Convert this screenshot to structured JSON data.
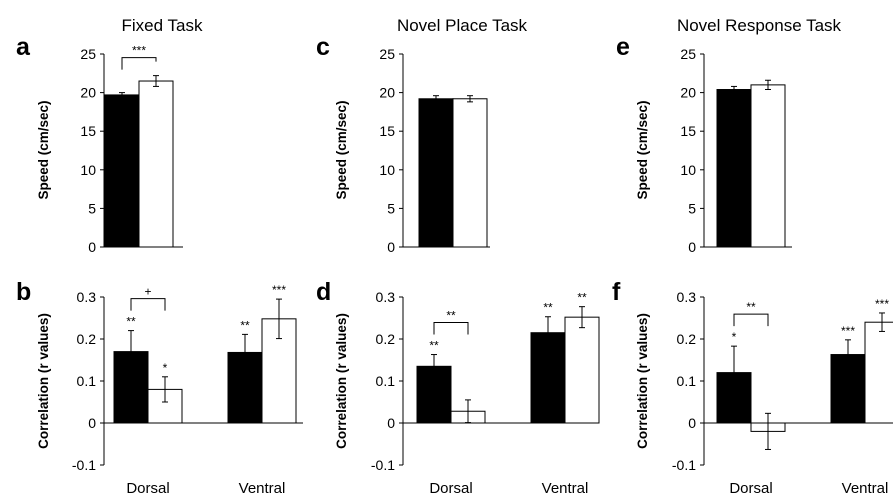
{
  "chart_data": [
    {
      "id": "a",
      "letter": "a",
      "type": "bar",
      "title": "Fixed Task",
      "ylabel": "Speed (cm/sec)",
      "ylim": [
        0,
        25
      ],
      "yticks": [
        0,
        5,
        10,
        15,
        20,
        25
      ],
      "categories": [
        ""
      ],
      "series": [
        {
          "fill": "#000000",
          "values": [
            19.7
          ],
          "errors": [
            0.3
          ],
          "labels": [
            ""
          ]
        },
        {
          "fill": "#ffffff",
          "values": [
            21.5
          ],
          "errors": [
            0.7
          ],
          "labels": [
            ""
          ]
        }
      ],
      "brackets": [
        {
          "group": 0,
          "label": "***"
        }
      ]
    },
    {
      "id": "b",
      "letter": "b",
      "type": "bar",
      "title": "",
      "ylabel": "Correlation (r values)",
      "ylim": [
        -0.1,
        0.3
      ],
      "yticks": [
        -0.1,
        0,
        0.1,
        0.2,
        0.3
      ],
      "categories": [
        "Dorsal",
        "Ventral"
      ],
      "series": [
        {
          "fill": "#000000",
          "values": [
            0.17,
            0.168
          ],
          "errors": [
            0.05,
            0.043
          ],
          "labels": [
            "**",
            "**"
          ]
        },
        {
          "fill": "#ffffff",
          "values": [
            0.08,
            0.248
          ],
          "errors": [
            0.03,
            0.047
          ],
          "labels": [
            "*",
            "***"
          ]
        }
      ],
      "brackets": [
        {
          "group": 0,
          "label": "+"
        }
      ]
    },
    {
      "id": "c",
      "letter": "c",
      "type": "bar",
      "title": "Novel Place Task",
      "ylabel": "Speed (cm/sec)",
      "ylim": [
        0,
        25
      ],
      "yticks": [
        0,
        5,
        10,
        15,
        20,
        25
      ],
      "categories": [
        ""
      ],
      "series": [
        {
          "fill": "#000000",
          "values": [
            19.2
          ],
          "errors": [
            0.4
          ],
          "labels": [
            ""
          ]
        },
        {
          "fill": "#ffffff",
          "values": [
            19.2
          ],
          "errors": [
            0.4
          ],
          "labels": [
            ""
          ]
        }
      ],
      "brackets": []
    },
    {
      "id": "d",
      "letter": "d",
      "type": "bar",
      "title": "",
      "ylabel": "Correlation (r values)",
      "ylim": [
        -0.1,
        0.3
      ],
      "yticks": [
        -0.1,
        0,
        0.1,
        0.2,
        0.3
      ],
      "categories": [
        "Dorsal",
        "Ventral"
      ],
      "series": [
        {
          "fill": "#000000",
          "values": [
            0.135,
            0.215
          ],
          "errors": [
            0.028,
            0.038
          ],
          "labels": [
            "**",
            "**"
          ]
        },
        {
          "fill": "#ffffff",
          "values": [
            0.028,
            0.252
          ],
          "errors": [
            0.027,
            0.025
          ],
          "labels": [
            "",
            "**"
          ]
        }
      ],
      "brackets": [
        {
          "group": 0,
          "label": "**"
        }
      ]
    },
    {
      "id": "e",
      "letter": "e",
      "type": "bar",
      "title": "Novel Response  Task",
      "ylabel": "Speed (cm/sec)",
      "ylim": [
        0,
        25
      ],
      "yticks": [
        0,
        5,
        10,
        15,
        20,
        25
      ],
      "categories": [
        ""
      ],
      "series": [
        {
          "fill": "#000000",
          "values": [
            20.4
          ],
          "errors": [
            0.4
          ],
          "labels": [
            ""
          ]
        },
        {
          "fill": "#ffffff",
          "values": [
            21.0
          ],
          "errors": [
            0.6
          ],
          "labels": [
            ""
          ]
        }
      ],
      "brackets": []
    },
    {
      "id": "f",
      "letter": "f",
      "type": "bar",
      "title": "",
      "ylabel": "Correlation (r values)",
      "ylim": [
        -0.1,
        0.3
      ],
      "yticks": [
        -0.1,
        0,
        0.1,
        0.2,
        0.3
      ],
      "categories": [
        "Dorsal",
        "Ventral"
      ],
      "series": [
        {
          "fill": "#000000",
          "values": [
            0.12,
            0.163
          ],
          "errors": [
            0.063,
            0.035
          ],
          "labels": [
            "*",
            "***"
          ]
        },
        {
          "fill": "#ffffff",
          "values": [
            -0.02,
            0.24
          ],
          "errors": [
            0.043,
            0.022
          ],
          "labels": [
            "",
            "***"
          ]
        }
      ],
      "brackets": [
        {
          "group": 0,
          "label": "**"
        }
      ]
    }
  ]
}
